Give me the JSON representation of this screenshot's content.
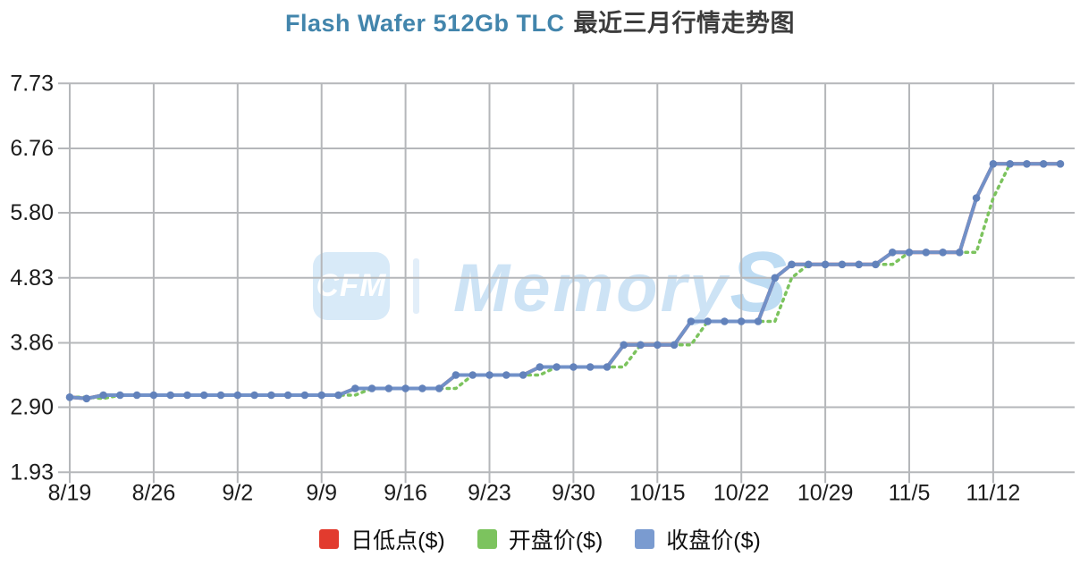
{
  "title": {
    "product": "Flash Wafer 512Gb TLC",
    "suffix": "最近三月行情走势图"
  },
  "watermark": {
    "logo": "CFM",
    "brand_main": "Memory",
    "brand_s": "S"
  },
  "legend": [
    {
      "label": "日低点($)",
      "color": "#e23b2e"
    },
    {
      "label": "开盘价($)",
      "color": "#7cc35e"
    },
    {
      "label": "收盘价($)",
      "color": "#7a9bd0"
    }
  ],
  "colors": {
    "grid": "#b5b7ba",
    "axis_text": "#1c1c1c",
    "title_en": "#4285ac",
    "title_cn": "#3c3c3c",
    "close_line": "#7191c8",
    "close_marker": "#6282bb",
    "open_line": "#7cc35e",
    "low_line": "#e23b2e",
    "watermark_blue": "#d8eaf8"
  },
  "chart_data": {
    "type": "line",
    "title": "Flash Wafer 512Gb TLC 最近三月行情走势图",
    "xlabel": "",
    "ylabel": "",
    "grid": true,
    "legend_position": "bottom",
    "ylim": [
      1.93,
      7.73
    ],
    "y_tick_labels": [
      "7.73",
      "6.76",
      "5.80",
      "4.83",
      "3.86",
      "2.90",
      "1.93"
    ],
    "y_ticks": [
      7.73,
      6.76,
      5.8,
      4.83,
      3.86,
      2.9,
      1.93
    ],
    "x_tick_labels": [
      "8/19",
      "8/26",
      "9/2",
      "9/9",
      "9/16",
      "9/23",
      "9/30",
      "10/15",
      "10/22",
      "10/29",
      "11/5",
      "11/12"
    ],
    "x_tick_indices": [
      0,
      5,
      10,
      15,
      20,
      25,
      30,
      35,
      40,
      45,
      50,
      55
    ],
    "n_points": 60,
    "series": [
      {
        "name": "日低点($)",
        "color": "#e23b2e",
        "style": "solid",
        "markers": false,
        "note": "not visually distinguishable in the image; coincides with and is hidden behind the 收盘价 line",
        "values": [
          3.05,
          3.03,
          3.08,
          3.08,
          3.08,
          3.08,
          3.08,
          3.08,
          3.08,
          3.08,
          3.08,
          3.08,
          3.08,
          3.08,
          3.08,
          3.08,
          3.08,
          3.18,
          3.18,
          3.18,
          3.18,
          3.18,
          3.18,
          3.38,
          3.38,
          3.38,
          3.38,
          3.38,
          3.5,
          3.5,
          3.5,
          3.5,
          3.5,
          3.83,
          3.83,
          3.83,
          3.83,
          4.18,
          4.18,
          4.18,
          4.18,
          4.18,
          4.83,
          5.03,
          5.03,
          5.03,
          5.03,
          5.03,
          5.03,
          5.21,
          5.21,
          5.21,
          5.21,
          5.21,
          6.02,
          6.53,
          6.53,
          6.53,
          6.53,
          6.53
        ]
      },
      {
        "name": "开盘价($)",
        "color": "#7cc35e",
        "style": "dotted",
        "markers": false,
        "note": "open equals previous close; visible as green dots only where price steps up",
        "values": [
          3.05,
          3.05,
          3.03,
          3.08,
          3.08,
          3.08,
          3.08,
          3.08,
          3.08,
          3.08,
          3.08,
          3.08,
          3.08,
          3.08,
          3.08,
          3.08,
          3.08,
          3.08,
          3.18,
          3.18,
          3.18,
          3.18,
          3.18,
          3.18,
          3.38,
          3.38,
          3.38,
          3.38,
          3.38,
          3.5,
          3.5,
          3.5,
          3.5,
          3.5,
          3.83,
          3.83,
          3.83,
          3.83,
          4.18,
          4.18,
          4.18,
          4.18,
          4.18,
          4.83,
          5.03,
          5.03,
          5.03,
          5.03,
          5.03,
          5.03,
          5.21,
          5.21,
          5.21,
          5.21,
          5.21,
          6.02,
          6.53,
          6.53,
          6.53,
          6.53
        ]
      },
      {
        "name": "收盘价($)",
        "color": "#7191c8",
        "style": "solid",
        "markers": true,
        "values": [
          3.05,
          3.03,
          3.08,
          3.08,
          3.08,
          3.08,
          3.08,
          3.08,
          3.08,
          3.08,
          3.08,
          3.08,
          3.08,
          3.08,
          3.08,
          3.08,
          3.08,
          3.18,
          3.18,
          3.18,
          3.18,
          3.18,
          3.18,
          3.38,
          3.38,
          3.38,
          3.38,
          3.38,
          3.5,
          3.5,
          3.5,
          3.5,
          3.5,
          3.83,
          3.83,
          3.83,
          3.83,
          4.18,
          4.18,
          4.18,
          4.18,
          4.18,
          4.83,
          5.03,
          5.03,
          5.03,
          5.03,
          5.03,
          5.03,
          5.21,
          5.21,
          5.21,
          5.21,
          5.21,
          6.02,
          6.53,
          6.53,
          6.53,
          6.53,
          6.53
        ]
      }
    ]
  }
}
